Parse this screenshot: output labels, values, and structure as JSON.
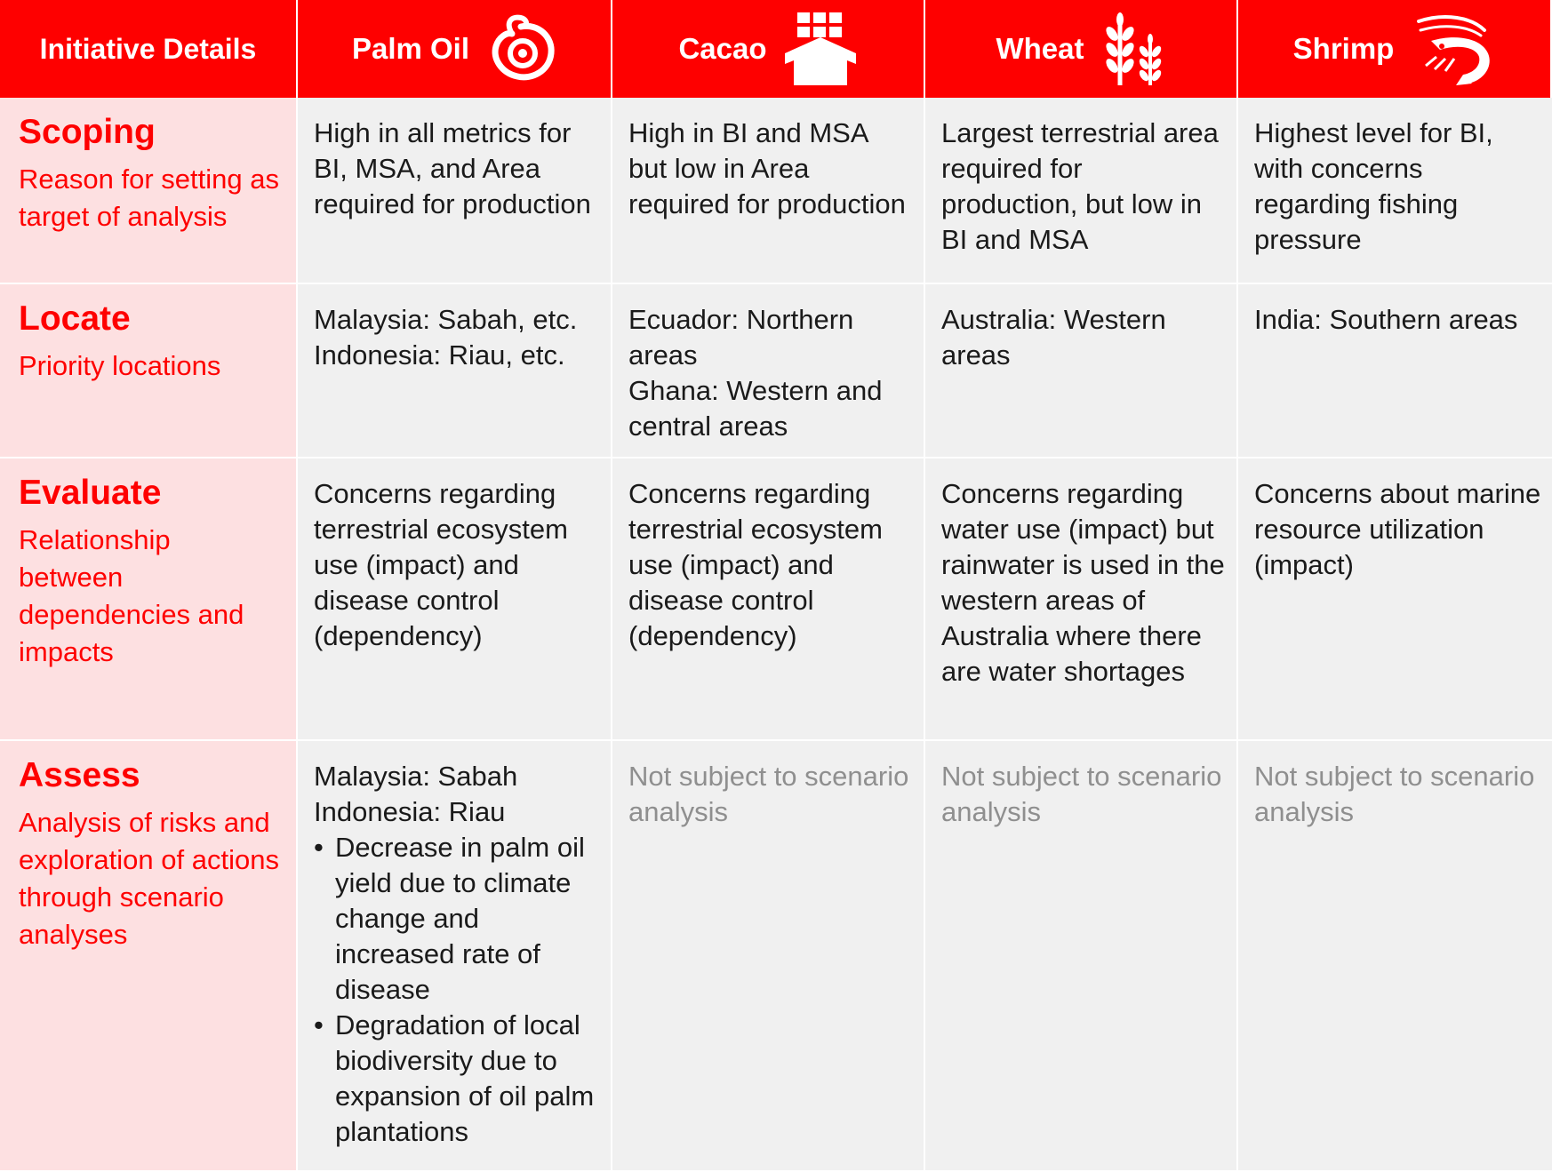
{
  "header": {
    "first": "Initiative Details",
    "columns": [
      {
        "label": "Palm Oil",
        "icon": "palm-oil-icon"
      },
      {
        "label": "Cacao",
        "icon": "cacao-icon"
      },
      {
        "label": "Wheat",
        "icon": "wheat-icon"
      },
      {
        "label": "Shrimp",
        "icon": "shrimp-icon"
      }
    ]
  },
  "colors": {
    "accent": "#fe0000",
    "row_header_bg": "#fde0e1",
    "cell_bg": "#f0f0f0",
    "muted_text": "#8f8f8f"
  },
  "rows": [
    {
      "title": "Scoping",
      "subtitle": "Reason for setting as target of analysis",
      "cells": [
        "High in all metrics for BI, MSA, and Area required for production",
        "High in BI and MSA but low in Area required for production",
        "Largest terrestrial area required for production, but low in BI and MSA",
        "Highest level for BI, with concerns regarding fishing pressure"
      ]
    },
    {
      "title": "Locate",
      "subtitle": "Priority locations",
      "cells": [
        [
          "Malaysia: Sabah, etc.",
          "Indonesia: Riau, etc."
        ],
        [
          "Ecuador: Northern areas",
          "Ghana: Western and central areas"
        ],
        [
          "Australia: Western areas"
        ],
        [
          "India: Southern areas"
        ]
      ]
    },
    {
      "title": "Evaluate",
      "subtitle": "Relationship between dependencies and impacts",
      "cells": [
        "Concerns regarding terrestrial ecosystem use (impact) and disease control (dependency)",
        "Concerns regarding terrestrial ecosystem use (impact) and disease control (dependency)",
        "Concerns regarding water use (impact) but rainwater is used in the western areas of Australia where there are water shortages",
        "Concerns about marine resource utilization (impact)"
      ]
    },
    {
      "title": "Assess",
      "subtitle": "Analysis of risks and exploration of actions through scenario analyses",
      "palm_lines": [
        "Malaysia: Sabah",
        "Indonesia: Riau"
      ],
      "palm_bullets": [
        "Decrease in palm oil yield due to climate change and increased rate of disease",
        "Degradation of local biodiversity due to expansion of oil palm plantations"
      ],
      "not_subject": [
        "Not subject to scenario analysis",
        "Not subject to scenario analysis",
        "Not subject to scenario analysis"
      ]
    }
  ]
}
